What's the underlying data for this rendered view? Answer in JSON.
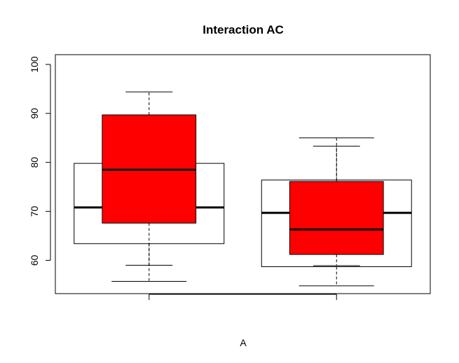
{
  "chart_data": {
    "type": "boxplot",
    "title": "Interaction AC",
    "xlabel": "A",
    "ylabel": "",
    "ylim": [
      53.2,
      102
    ],
    "yticks": [
      60,
      70,
      80,
      90,
      100
    ],
    "ytick_labels": [
      "60",
      "70",
      "80",
      "90",
      "100"
    ],
    "xtick_labels": [
      "",
      ""
    ],
    "grid": false,
    "legend": "none",
    "groups": [
      {
        "position": 1,
        "boxes": [
          {
            "layer": "outer",
            "fill": "#ffffff",
            "whisker_low": 55.7,
            "q1": 63.4,
            "median": 70.8,
            "q3": 79.8,
            "whisker_high": 79.8,
            "width": 0.8
          },
          {
            "layer": "inner",
            "fill": "#ff0000",
            "whisker_low": 59.0,
            "q1": 67.6,
            "median": 78.5,
            "q3": 89.7,
            "whisker_high": 94.4,
            "width": 0.5
          }
        ]
      },
      {
        "position": 2,
        "boxes": [
          {
            "layer": "outer",
            "fill": "#ffffff",
            "whisker_low": 54.8,
            "q1": 58.7,
            "median": 69.7,
            "q3": 76.4,
            "whisker_high": 85.0,
            "width": 0.8
          },
          {
            "layer": "inner",
            "fill": "#ff0000",
            "whisker_low": 58.9,
            "q1": 61.2,
            "median": 66.3,
            "q3": 76.1,
            "whisker_high": 83.3,
            "width": 0.5
          }
        ]
      }
    ]
  }
}
